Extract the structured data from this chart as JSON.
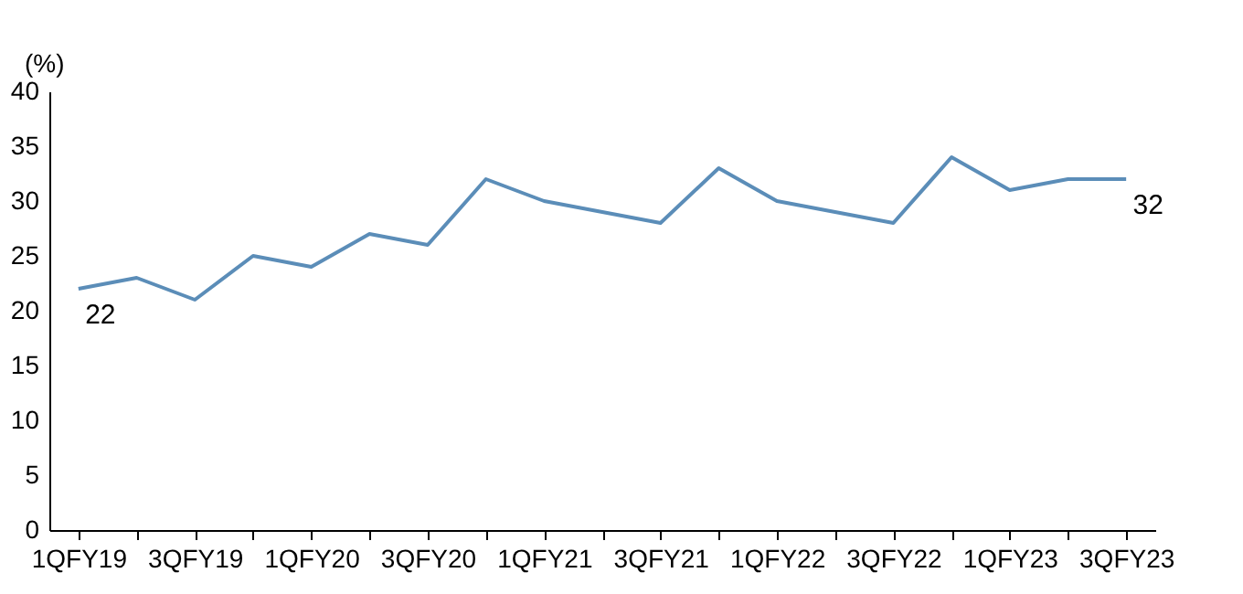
{
  "chart_data": {
    "type": "line",
    "ylabel": "(%)",
    "categories": [
      "1QFY19",
      null,
      "3QFY19",
      null,
      "1QFY20",
      null,
      "3QFY20",
      null,
      "1QFY21",
      null,
      "3QFY21",
      null,
      "1QFY22",
      null,
      "3QFY22",
      null,
      "1QFY23",
      null,
      "3QFY23"
    ],
    "series": [
      {
        "color": "#5b8db8",
        "values": [
          22,
          23,
          21,
          25,
          24,
          27,
          26,
          32,
          30,
          29,
          28,
          33,
          30,
          29,
          28,
          34,
          31,
          32,
          32
        ],
        "value_labels": [
          "22",
          null,
          null,
          null,
          null,
          null,
          null,
          null,
          null,
          null,
          null,
          null,
          null,
          null,
          null,
          null,
          null,
          null,
          "32"
        ]
      }
    ],
    "ylim": [
      0,
      40
    ],
    "yticks": [
      0,
      5,
      10,
      15,
      20,
      25,
      30,
      35,
      40
    ],
    "grid": false,
    "marker": "none",
    "line_style": "solid"
  }
}
